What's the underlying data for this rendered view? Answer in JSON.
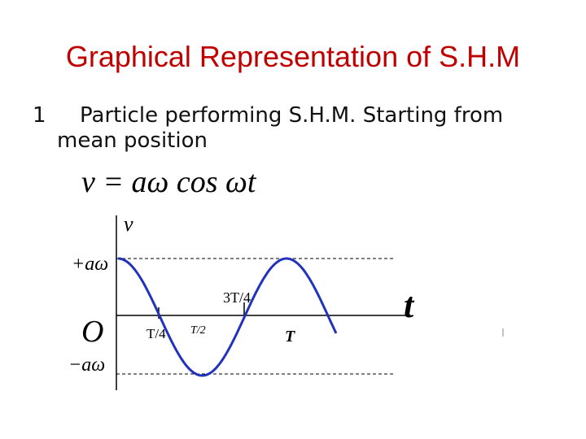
{
  "title": "Graphical Representation of S.H.M",
  "item": {
    "number": "1",
    "lines": [
      "Particle performing S.H.M. Starting from",
      "mean position"
    ]
  },
  "equation": "v = aω cos ωt",
  "graph": {
    "y_axis": "v",
    "x_axis": "t",
    "origin": "O",
    "top_level": "+aω",
    "bottom_level": "−aω",
    "marks": [
      "T/4",
      "T/2",
      "3T/4",
      "T"
    ]
  }
}
